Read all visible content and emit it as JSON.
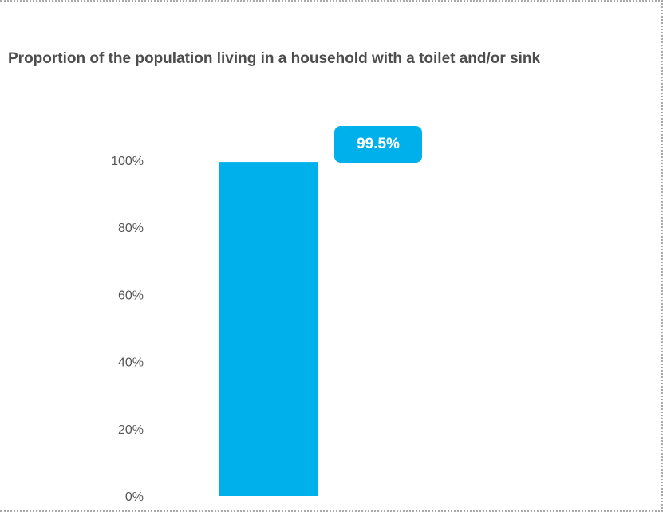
{
  "chart_data": {
    "type": "bar",
    "title": "Proportion of the population living in a household with a toilet and/or sink",
    "categories": [
      ""
    ],
    "values": [
      99.5
    ],
    "data_labels": [
      "99.5%"
    ],
    "yticks": [
      "0%",
      "20%",
      "40%",
      "60%",
      "80%",
      "100%"
    ],
    "ylim": [
      0,
      100
    ],
    "xlabel": "",
    "ylabel": "",
    "grid": false,
    "legend": "none",
    "colors": {
      "bar": "#00b0ea",
      "title": "#4d4d4d",
      "tick": "#555555",
      "border": "#a9a9a9"
    }
  }
}
